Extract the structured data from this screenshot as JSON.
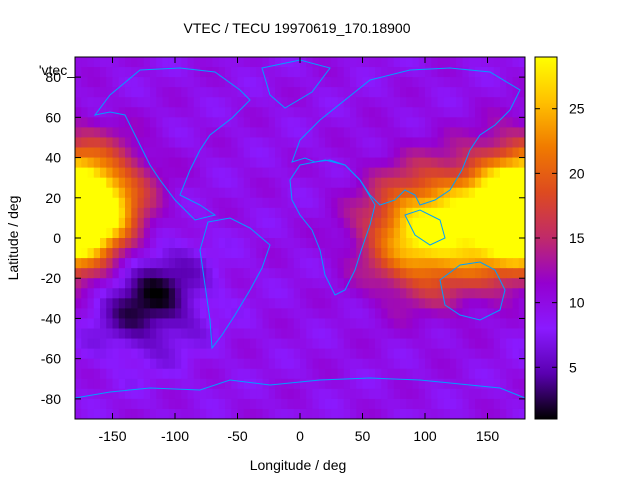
{
  "chart_data": {
    "type": "heatmap",
    "title": "VTEC / TECU 19970619_170.18900",
    "xlabel": "Longitude / deg",
    "ylabel": "Latitude / deg",
    "key_label": "'vtec_",
    "xlim": [
      -180,
      180
    ],
    "ylim": [
      -90,
      90
    ],
    "xticks": [
      -150,
      -100,
      -50,
      0,
      50,
      100,
      150
    ],
    "yticks": [
      -80,
      -60,
      -40,
      -20,
      0,
      20,
      40,
      60,
      80
    ],
    "cblim": [
      1,
      29
    ],
    "cbticks": [
      5,
      10,
      15,
      20,
      25
    ],
    "palette": [
      "#000000",
      "#5a00b0",
      "#8a1aff",
      "#9400d0",
      "#c02a6a",
      "#dd4a20",
      "#f07a00",
      "#ffc000",
      "#ffff00"
    ],
    "coastline_color": "#00a0ff",
    "grid": false,
    "features": [
      {
        "lon": -175,
        "lat": 15,
        "value": 28
      },
      {
        "lon": 100,
        "lat": 3,
        "value": 29
      },
      {
        "lon": 175,
        "lat": 10,
        "value": 26
      },
      {
        "lon": -125,
        "lat": -27,
        "value": 1
      }
    ]
  }
}
